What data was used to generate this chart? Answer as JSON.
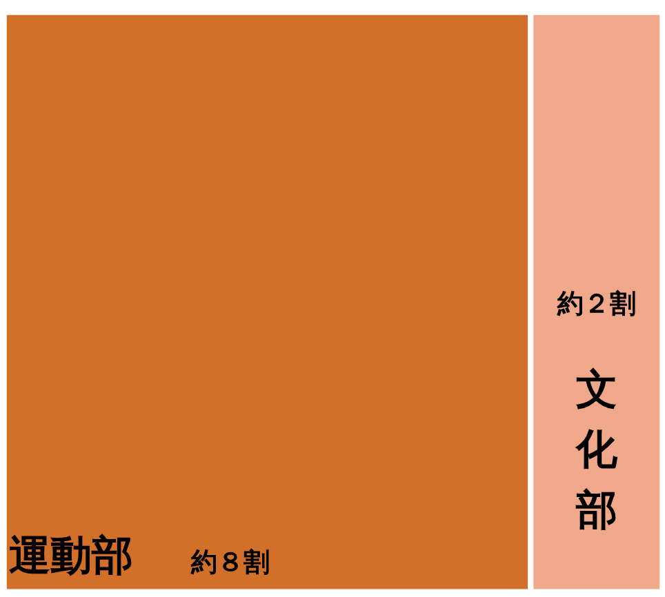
{
  "chart_data": {
    "type": "other",
    "categories": [
      "運動部",
      "文化部"
    ],
    "values": [
      8,
      2
    ],
    "colors": [
      "#d2702a",
      "#f0a88a"
    ],
    "value_labels": [
      "約８割",
      "約２割"
    ]
  }
}
